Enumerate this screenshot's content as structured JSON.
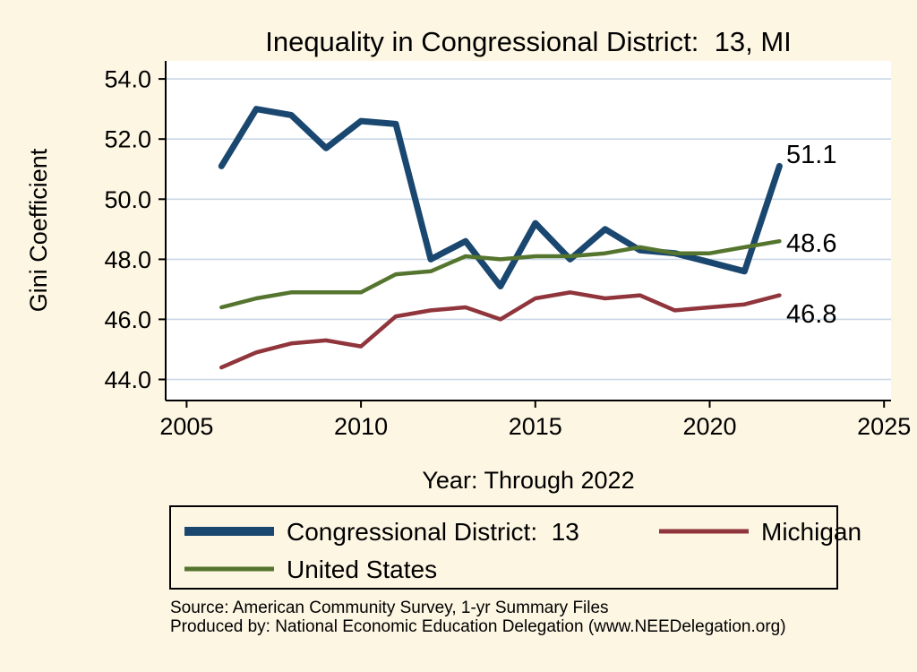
{
  "page": {
    "background": "#FDF6E3"
  },
  "title": {
    "text": "Inequality in Congressional District:  13, MI",
    "color": "#1a476f"
  },
  "axes": {
    "ylabel": "Gini Coefficient",
    "xlabel": "Year: Through 2022"
  },
  "end_labels": [
    {
      "series": "Congressional District:  13",
      "text": "51.1"
    },
    {
      "series": "United States",
      "text": "48.6"
    },
    {
      "series": "Michigan",
      "text": "46.8"
    }
  ],
  "legend": {
    "labels": [
      "Congressional District:  13",
      "Michigan",
      "United States"
    ]
  },
  "source": {
    "line1": "Source: American Community Survey, 1-yr Summary Files",
    "line2": "Produced by: National Economic Education Delegation (www.NEEDelegation.org)"
  },
  "chart_data": {
    "type": "line",
    "title": "Inequality in Congressional District:  13, MI",
    "xlabel": "Year: Through 2022",
    "ylabel": "Gini Coefficient",
    "x": [
      2006,
      2007,
      2008,
      2009,
      2010,
      2011,
      2012,
      2013,
      2014,
      2015,
      2016,
      2017,
      2018,
      2019,
      2020,
      2021,
      2022
    ],
    "series": [
      {
        "name": "Congressional District:  13",
        "color": "#1a476f",
        "stroke_width": 7,
        "values": [
          51.1,
          53.0,
          52.8,
          51.7,
          52.6,
          52.5,
          48.0,
          48.6,
          47.1,
          49.2,
          48.0,
          49.0,
          48.3,
          48.2,
          47.9,
          47.6,
          51.1
        ]
      },
      {
        "name": "Michigan",
        "color": "#90353b",
        "stroke_width": 4.5,
        "values": [
          44.4,
          44.9,
          45.2,
          45.3,
          45.1,
          46.1,
          46.3,
          46.4,
          46.0,
          46.7,
          46.9,
          46.7,
          46.8,
          46.3,
          46.4,
          46.5,
          46.8
        ]
      },
      {
        "name": "United States",
        "color": "#55752f",
        "stroke_width": 4.5,
        "values": [
          46.4,
          46.7,
          46.9,
          46.9,
          46.9,
          47.5,
          47.6,
          48.1,
          48.0,
          48.1,
          48.1,
          48.2,
          48.4,
          48.2,
          48.2,
          48.4,
          48.6
        ]
      }
    ],
    "xlim": [
      2004.4,
      2025.2
    ],
    "ylim": [
      43.3,
      54.6
    ],
    "xticks": [
      2005,
      2010,
      2015,
      2020,
      2025
    ],
    "yticks": [
      44.0,
      46.0,
      48.0,
      50.0,
      52.0,
      54.0
    ],
    "ytick_decimals": 1,
    "grid": "horizontal",
    "gridline_color": "#c9d8e6",
    "plot_background": "#ffffff",
    "legend_position": "bottom"
  }
}
